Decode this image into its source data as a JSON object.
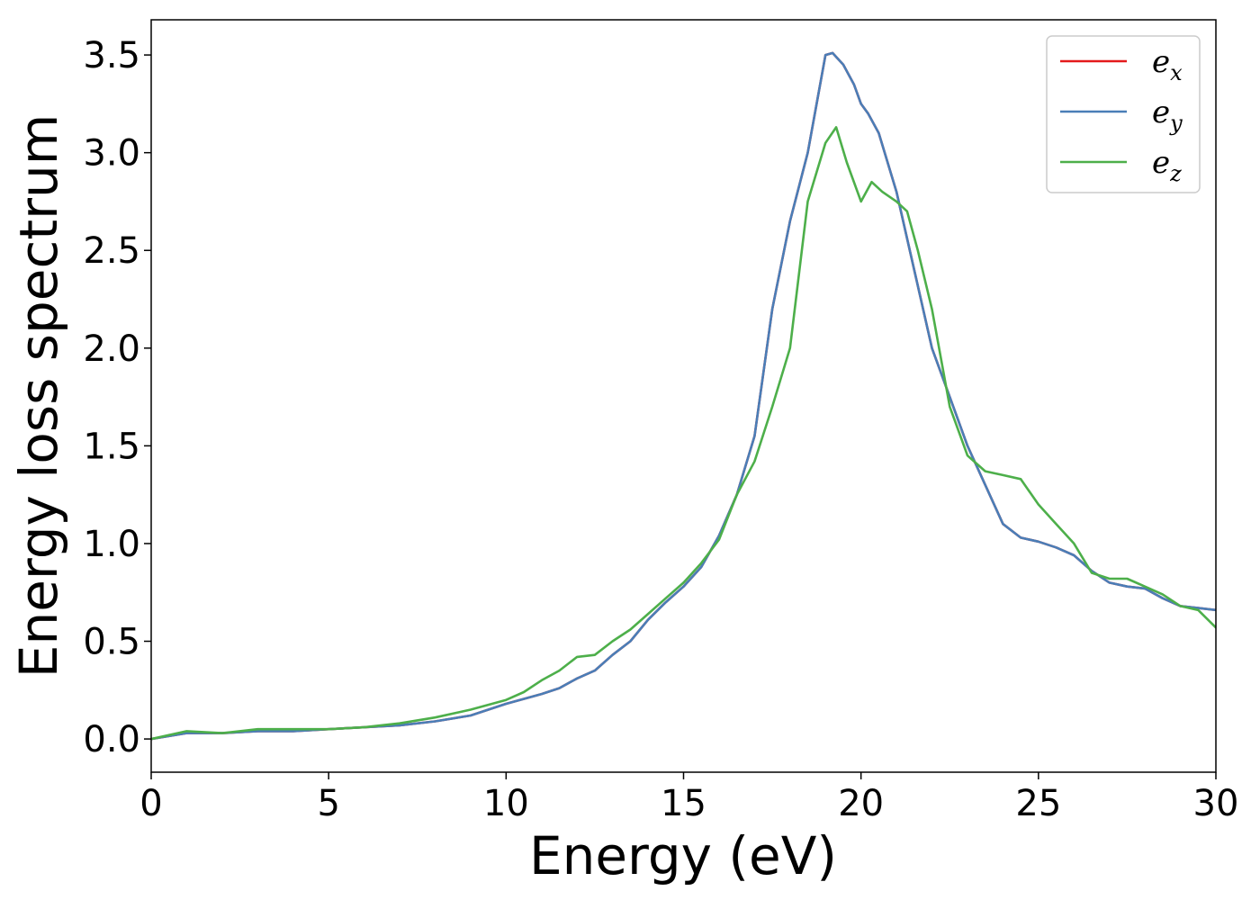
{
  "chart_data": {
    "type": "line",
    "title": "",
    "xlabel": "Energy (eV)",
    "ylabel": "Energy loss spectrum",
    "xlim": [
      0,
      30
    ],
    "ylim": [
      -0.17,
      3.68
    ],
    "xticks": [
      0,
      5,
      10,
      15,
      20,
      25,
      30
    ],
    "xtick_labels": [
      "0",
      "5",
      "10",
      "15",
      "20",
      "25",
      "30"
    ],
    "yticks": [
      0.0,
      0.5,
      1.0,
      1.5,
      2.0,
      2.5,
      3.0,
      3.5
    ],
    "ytick_labels": [
      "0.0",
      "0.5",
      "1.0",
      "1.5",
      "2.0",
      "2.5",
      "3.0",
      "3.5"
    ],
    "grid": false,
    "legend_position": "top-right",
    "series": [
      {
        "name": "e_x",
        "name_base": "e",
        "name_sub": "x",
        "color": "#e41a1c",
        "x": [
          0,
          1,
          2,
          3,
          4,
          5,
          6,
          7,
          8,
          9,
          10,
          11,
          11.5,
          12,
          12.5,
          13,
          13.5,
          14,
          14.5,
          15,
          15.5,
          16,
          16.5,
          17,
          17.5,
          18,
          18.5,
          19,
          19.2,
          19.5,
          19.8,
          20,
          20.2,
          20.5,
          21,
          21.5,
          22,
          22.5,
          23,
          23.5,
          24,
          24.5,
          25,
          25.5,
          26,
          26.5,
          27,
          27.5,
          28,
          28.5,
          29,
          29.5,
          30
        ],
        "y": [
          0.0,
          0.03,
          0.03,
          0.04,
          0.04,
          0.05,
          0.06,
          0.07,
          0.09,
          0.12,
          0.18,
          0.23,
          0.26,
          0.31,
          0.35,
          0.43,
          0.5,
          0.61,
          0.7,
          0.78,
          0.88,
          1.04,
          1.25,
          1.55,
          2.2,
          2.65,
          3.0,
          3.5,
          3.51,
          3.45,
          3.35,
          3.25,
          3.2,
          3.1,
          2.8,
          2.4,
          2.0,
          1.75,
          1.5,
          1.3,
          1.1,
          1.03,
          1.01,
          0.98,
          0.94,
          0.86,
          0.8,
          0.78,
          0.77,
          0.72,
          0.68,
          0.67,
          0.66
        ]
      },
      {
        "name": "e_y",
        "name_base": "e",
        "name_sub": "y",
        "color": "#4a7eb7",
        "x": [
          0,
          1,
          2,
          3,
          4,
          5,
          6,
          7,
          8,
          9,
          10,
          11,
          11.5,
          12,
          12.5,
          13,
          13.5,
          14,
          14.5,
          15,
          15.5,
          16,
          16.5,
          17,
          17.5,
          18,
          18.5,
          19,
          19.2,
          19.5,
          19.8,
          20,
          20.2,
          20.5,
          21,
          21.5,
          22,
          22.5,
          23,
          23.5,
          24,
          24.5,
          25,
          25.5,
          26,
          26.5,
          27,
          27.5,
          28,
          28.5,
          29,
          29.5,
          30
        ],
        "y": [
          0.0,
          0.03,
          0.03,
          0.04,
          0.04,
          0.05,
          0.06,
          0.07,
          0.09,
          0.12,
          0.18,
          0.23,
          0.26,
          0.31,
          0.35,
          0.43,
          0.5,
          0.61,
          0.7,
          0.78,
          0.88,
          1.04,
          1.25,
          1.55,
          2.2,
          2.65,
          3.0,
          3.5,
          3.51,
          3.45,
          3.35,
          3.25,
          3.2,
          3.1,
          2.8,
          2.4,
          2.0,
          1.75,
          1.5,
          1.3,
          1.1,
          1.03,
          1.01,
          0.98,
          0.94,
          0.86,
          0.8,
          0.78,
          0.77,
          0.72,
          0.68,
          0.67,
          0.66
        ]
      },
      {
        "name": "e_z",
        "name_base": "e",
        "name_sub": "z",
        "color": "#4daf4a",
        "x": [
          0,
          1,
          2,
          3,
          4,
          5,
          6,
          7,
          8,
          9,
          10,
          10.5,
          11,
          11.5,
          12,
          12.5,
          13,
          13.5,
          14,
          14.5,
          15,
          15.5,
          16,
          16.5,
          17,
          17.5,
          18,
          18.5,
          19,
          19.3,
          19.6,
          20,
          20.3,
          20.6,
          21,
          21.3,
          21.6,
          22,
          22.5,
          23,
          23.5,
          24,
          24.5,
          25,
          25.5,
          26,
          26.5,
          27,
          27.5,
          28,
          28.5,
          29,
          29.5,
          30
        ],
        "y": [
          0.0,
          0.04,
          0.03,
          0.05,
          0.05,
          0.05,
          0.06,
          0.08,
          0.11,
          0.15,
          0.2,
          0.24,
          0.3,
          0.35,
          0.42,
          0.43,
          0.5,
          0.56,
          0.64,
          0.72,
          0.8,
          0.9,
          1.02,
          1.25,
          1.42,
          1.7,
          2.0,
          2.75,
          3.05,
          3.13,
          2.95,
          2.75,
          2.85,
          2.8,
          2.75,
          2.7,
          2.5,
          2.2,
          1.7,
          1.45,
          1.37,
          1.35,
          1.33,
          1.2,
          1.1,
          1.0,
          0.85,
          0.82,
          0.82,
          0.78,
          0.74,
          0.68,
          0.66,
          0.57
        ]
      }
    ]
  }
}
